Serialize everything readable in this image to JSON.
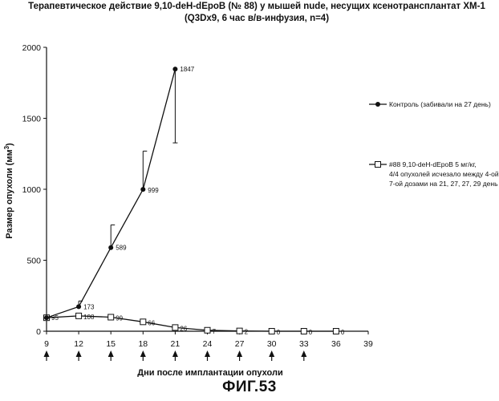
{
  "chart_data": {
    "type": "line",
    "title_line1": "Терапевтическое  действие 9,10-deH-dEpoB (№ 88) у мышей nude, несущих ксенотрансплантат ХМ-1",
    "title_line2": "(Q3Dx9, 6 час в/в-инфузия, n=4)",
    "xlabel": "Дни после имплантации опухоли",
    "ylabel": "Размер опухоли (мм",
    "ylabel_sup": "3",
    "ylabel_tail": ")",
    "xlim": [
      9,
      39
    ],
    "ylim": [
      0,
      2000
    ],
    "xticks": [
      9,
      12,
      15,
      18,
      21,
      24,
      27,
      30,
      33,
      36,
      39
    ],
    "yticks": [
      0,
      500,
      1000,
      1500,
      2000
    ],
    "dose_days": [
      9,
      12,
      15,
      18,
      21,
      24,
      27,
      30,
      33
    ],
    "series": [
      {
        "name": "Контроль (забивали на 27 день)",
        "marker": "filled-circle",
        "x": [
          9,
          12,
          15,
          18,
          21
        ],
        "y": [
          95,
          173,
          589,
          999,
          1847
        ],
        "labels": [
          "95",
          "173",
          "589",
          "999",
          "1847"
        ],
        "err_up": [
          0,
          40,
          160,
          270,
          0
        ],
        "err_down": [
          0,
          0,
          0,
          0,
          520
        ]
      },
      {
        "name_lines": [
          "#88 9,10-deH-dEpoB 5 мг/кг,",
          "4/4 опухолей исчезало между 4-ой и",
          "7-ой дозами на 21, 27, 27, 29 день"
        ],
        "marker": "open-square",
        "x": [
          9,
          12,
          15,
          18,
          21,
          24,
          27,
          30,
          33,
          36
        ],
        "y": [
          95,
          108,
          99,
          66,
          26,
          7,
          2,
          0,
          0,
          0
        ],
        "labels": [
          "95",
          "108",
          "99",
          "66",
          "26",
          "7",
          "2",
          "0",
          "0",
          "0"
        ]
      }
    ]
  },
  "figure_label": "ФИГ.53"
}
